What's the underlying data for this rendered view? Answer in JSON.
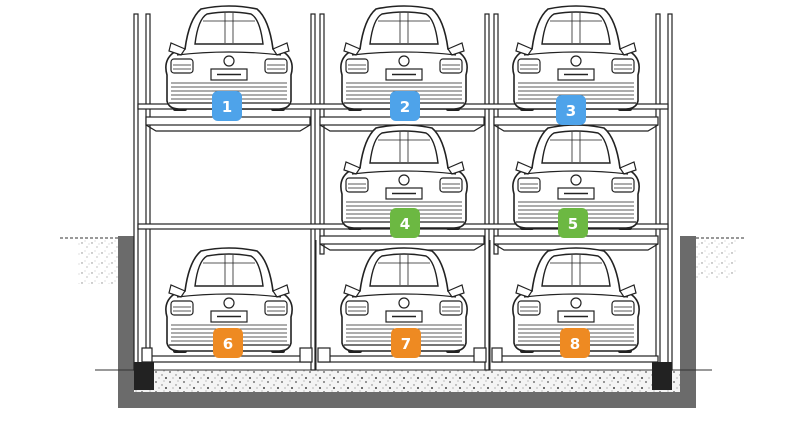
{
  "diagram": {
    "type": "multi-level parking system cross-section",
    "slots": [
      {
        "label": "1",
        "level": "upper",
        "column": 1,
        "color": "#4ea3ea"
      },
      {
        "label": "2",
        "level": "upper",
        "column": 2,
        "color": "#4ea3ea"
      },
      {
        "label": "3",
        "level": "upper",
        "column": 3,
        "color": "#4ea3ea"
      },
      {
        "label": "4",
        "level": "middle",
        "column": 2,
        "color": "#6cb842"
      },
      {
        "label": "5",
        "level": "middle",
        "column": 3,
        "color": "#6cb842"
      },
      {
        "label": "6",
        "level": "pit",
        "column": 1,
        "color": "#ee8a22"
      },
      {
        "label": "7",
        "level": "pit",
        "column": 2,
        "color": "#ee8a22"
      },
      {
        "label": "8",
        "level": "pit",
        "column": 3,
        "color": "#ee8a22"
      }
    ],
    "colors": {
      "upper": "#4ea3ea",
      "middle": "#6cb842",
      "pit": "#ee8a22",
      "pit_wall": "#6b6b6b",
      "line": "#222222"
    }
  }
}
